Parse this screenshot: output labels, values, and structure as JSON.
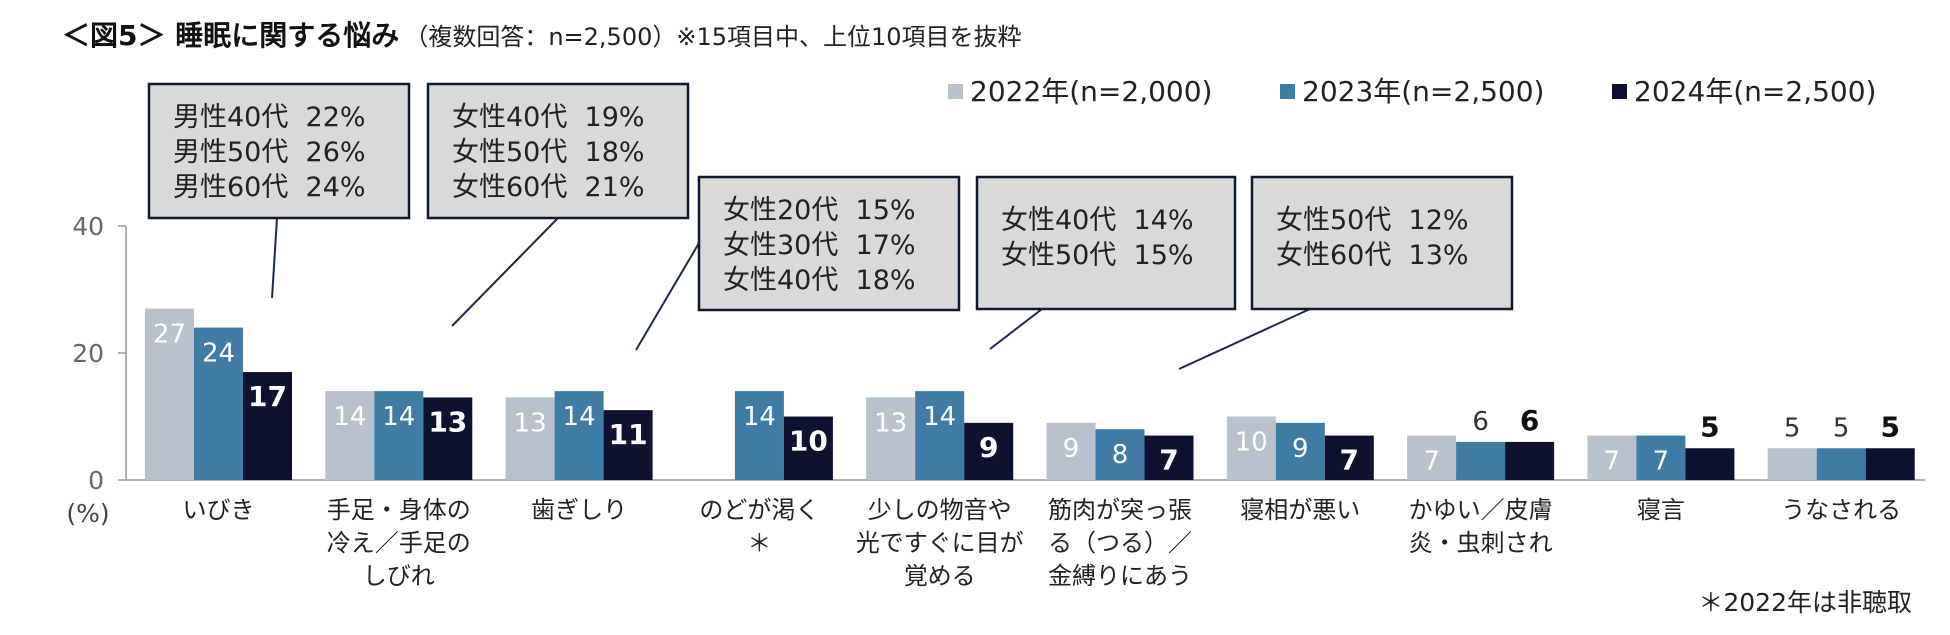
{
  "title": {
    "main": "＜図5＞ 睡眠に関する悩み",
    "sub": "（複数回答：n=2,500）※15項目中、上位10項目を抜粋"
  },
  "colors": {
    "s2022": "#b8c1cc",
    "s2023": "#3e7ca6",
    "s2024": "#0e1130",
    "axis": "#999999",
    "callout_bg": "#d9d9d9",
    "callout_border": "#0e1a30"
  },
  "chart_data": {
    "type": "bar",
    "categories": [
      "いびき",
      "手足・身体の冷え／手足のしびれ",
      "歯ぎしり",
      "のどが渇く＊",
      "少しの物音や光ですぐに目が覚める",
      "筋肉が突っ張る（つる）／金縛りにあう",
      "寝相が悪い",
      "かゆい／皮膚炎・虫刺され",
      "寝言",
      "うなされる"
    ],
    "category_lines": [
      [
        "いびき"
      ],
      [
        "手足・身体の",
        "冷え／手足の",
        "しびれ"
      ],
      [
        "歯ぎしり"
      ],
      [
        "のどが渇く",
        "＊"
      ],
      [
        "少しの物音や",
        "光ですぐに目が",
        "覚める"
      ],
      [
        "筋肉が突っ張",
        "る（つる）／",
        "金縛りにあう"
      ],
      [
        "寝相が悪い"
      ],
      [
        "かゆい／皮膚",
        "炎・虫刺され"
      ],
      [
        "寝言"
      ],
      [
        "うなされる"
      ]
    ],
    "series": [
      {
        "name": "2022年(n=2,000)",
        "values": [
          27,
          14,
          13,
          null,
          13,
          9,
          10,
          7,
          7,
          5
        ]
      },
      {
        "name": "2023年(n=2,500)",
        "values": [
          24,
          14,
          14,
          14,
          14,
          8,
          9,
          6,
          7,
          5
        ]
      },
      {
        "name": "2024年(n=2,500)",
        "values": [
          17,
          13,
          11,
          10,
          9,
          7,
          7,
          6,
          5,
          5
        ]
      }
    ],
    "ylim": [
      0,
      40
    ],
    "yticks": [
      0,
      20,
      40
    ],
    "ylabel": "(%)",
    "legend_position": "top-right",
    "grid": false,
    "footnote": "＊2022年は非聴取",
    "annotations": [
      {
        "lines": [
          "男性40代  22%",
          "男性50代  26%",
          "男性60代  24%"
        ],
        "category": 0
      },
      {
        "lines": [
          "女性40代  19%",
          "女性50代  18%",
          "女性60代  21%"
        ],
        "category": 1
      },
      {
        "lines": [
          "女性20代  15%",
          "女性30代  17%",
          "女性40代  18%"
        ],
        "category": 2
      },
      {
        "lines": [
          "女性40代  14%",
          "女性50代  15%"
        ],
        "category": 4
      },
      {
        "lines": [
          "女性50代  12%",
          "女性60代  13%"
        ],
        "category": 5
      }
    ]
  }
}
